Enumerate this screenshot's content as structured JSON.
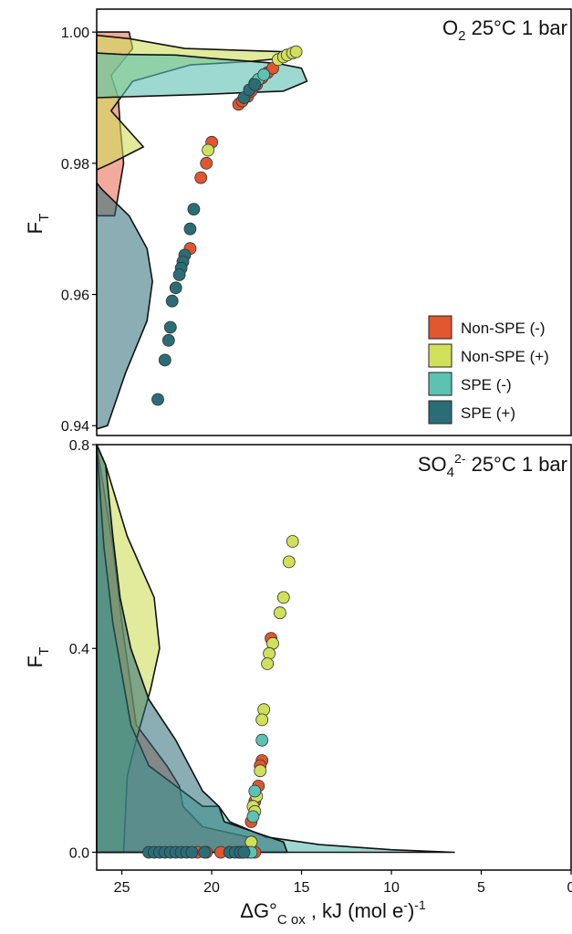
{
  "chart_data": [
    {
      "type": "scatter",
      "panel": "top",
      "title_main": "O",
      "title_sub": "2",
      "title_rest": " 25°C 1 bar",
      "ylabel_main": "F",
      "ylabel_sub": "T",
      "ylim": [
        0.9385,
        1.0035
      ],
      "y_ticks": [
        0.94,
        0.96,
        0.98,
        1.0
      ],
      "y_tick_labels": [
        "0.94",
        "0.96",
        "0.98",
        "1.00"
      ],
      "density_series": [
        {
          "name": "Non-SPE (-)",
          "color": "#e8644a",
          "fill": "rgba(232,100,74,0.55)",
          "x": [
            26.4,
            24.6,
            24.4,
            25.6,
            25.2,
            25.1,
            24.9,
            25.4,
            26.4
          ],
          "y": [
            1.0,
            1.0,
            0.9975,
            0.9934,
            0.99,
            0.986,
            0.98,
            0.972,
            0.972
          ]
        },
        {
          "name": "Non-SPE (+)",
          "color": "#cfdc5a",
          "fill": "rgba(207,220,90,0.6)",
          "x": [
            26.4,
            24.6,
            21.5,
            15.9,
            15.3,
            18.0,
            21.2,
            24.4,
            25.6,
            23.8,
            25.6,
            26.4
          ],
          "y": [
            0.9995,
            0.999,
            0.9975,
            0.997,
            0.9962,
            0.9955,
            0.995,
            0.9925,
            0.988,
            0.9825,
            0.98,
            0.979
          ]
        },
        {
          "name": "SPE (-)",
          "color": "#5cbfb1",
          "fill": "rgba(92,191,177,0.6)",
          "x": [
            26.4,
            25.0,
            22.0,
            20.0,
            16.3,
            15.0,
            14.7,
            16.0,
            20.5,
            24.0,
            26.4
          ],
          "y": [
            0.9968,
            0.9966,
            0.9965,
            0.996,
            0.9952,
            0.9945,
            0.9925,
            0.991,
            0.9905,
            0.9902,
            0.99
          ]
        },
        {
          "name": "SPE (+)",
          "color": "#2a6b74",
          "fill": "rgba(42,107,116,0.55)",
          "x": [
            26.4,
            26.1,
            24.6,
            23.6,
            23.3,
            23.6,
            24.8,
            25.8,
            26.4
          ],
          "y": [
            0.977,
            0.976,
            0.972,
            0.967,
            0.962,
            0.956,
            0.948,
            0.94,
            0.9395
          ]
        }
      ],
      "scatter_series": [
        {
          "name": "Non-SPE (-)",
          "color": "#e0562f",
          "x": [
            18.5,
            18.3,
            18.0,
            17.8,
            17.5,
            17.2,
            16.9,
            16.6,
            20.0,
            20.3,
            20.6,
            21.2
          ],
          "y": [
            0.989,
            0.9895,
            0.9902,
            0.991,
            0.992,
            0.993,
            0.9938,
            0.9945,
            0.9832,
            0.98,
            0.9778,
            0.967
          ]
        },
        {
          "name": "Non-SPE (+)",
          "color": "#d1e05a",
          "x": [
            16.3,
            16.0,
            15.8,
            15.5,
            15.3,
            20.2
          ],
          "y": [
            0.9958,
            0.9962,
            0.9965,
            0.9968,
            0.997,
            0.982
          ]
        },
        {
          "name": "SPE (-)",
          "color": "#5cc3b3",
          "x": [
            17.6,
            17.4,
            17.1
          ],
          "y": [
            0.9922,
            0.9928,
            0.9935
          ]
        },
        {
          "name": "SPE (+)",
          "color": "#2b6d77",
          "x": [
            18.2,
            17.9,
            17.6,
            21.0,
            21.2,
            21.5,
            21.6,
            21.7,
            21.8,
            22.0,
            22.2,
            22.3,
            22.4,
            22.6,
            23.0
          ],
          "y": [
            0.99,
            0.9912,
            0.992,
            0.973,
            0.97,
            0.966,
            0.965,
            0.964,
            0.963,
            0.961,
            0.959,
            0.955,
            0.953,
            0.95,
            0.944
          ]
        }
      ],
      "legend": {
        "placement": "bottom-right",
        "items": [
          {
            "label": "Non-SPE (-)",
            "color": "#e0562f"
          },
          {
            "label": "Non-SPE (+)",
            "color": "#d1e05a"
          },
          {
            "label": "SPE (-)",
            "color": "#5cc3b3"
          },
          {
            "label": "SPE (+)",
            "color": "#2b6d77"
          }
        ]
      }
    },
    {
      "type": "scatter",
      "panel": "bottom",
      "title_main": "SO",
      "title_sub": "4",
      "title_sup": "2-",
      "title_rest": " 25°C 1 bar",
      "ylabel_main": "F",
      "ylabel_sub": "T",
      "ylim": [
        -0.035,
        0.8
      ],
      "y_ticks": [
        0.0,
        0.4,
        0.8
      ],
      "y_tick_labels": [
        "0.0",
        "0.4",
        "0.8"
      ],
      "density_series": [
        {
          "name": "Non-SPE (-)",
          "color": "#e8644a",
          "fill": "rgba(232,100,74,0.55)",
          "x": [
            26.4,
            25.5,
            25.0,
            24.6,
            24.2,
            22.5,
            21.8,
            21.6,
            20.5,
            18.0,
            17.5,
            17.8,
            26.4
          ],
          "y": [
            0.8,
            0.6,
            0.45,
            0.35,
            0.25,
            0.17,
            0.13,
            0.09,
            0.05,
            0.03,
            0.01,
            0.0,
            0.0
          ]
        },
        {
          "name": "Non-SPE (+)",
          "color": "#cfdc5a",
          "fill": "rgba(207,220,90,0.6)",
          "x": [
            26.4,
            25.9,
            24.7,
            23.2,
            22.9,
            23.4,
            24.2,
            24.7,
            24.9,
            26.4
          ],
          "y": [
            0.8,
            0.76,
            0.62,
            0.5,
            0.4,
            0.32,
            0.22,
            0.15,
            0.0,
            0.0
          ]
        },
        {
          "name": "SPE (-)",
          "color": "#5cbfb1",
          "fill": "rgba(92,191,177,0.6)",
          "x": [
            26.4,
            26.0,
            25.5,
            25.0,
            24.5,
            23.5,
            22.0,
            20.5,
            19.6,
            19.0,
            17.0,
            14.0,
            10.0,
            6.5,
            26.4
          ],
          "y": [
            0.8,
            0.6,
            0.45,
            0.35,
            0.25,
            0.17,
            0.13,
            0.09,
            0.09,
            0.06,
            0.03,
            0.015,
            0.005,
            0.0,
            0.0
          ]
        },
        {
          "name": "SPE (+)",
          "color": "#2a6b74",
          "fill": "rgba(42,107,116,0.55)",
          "x": [
            26.4,
            25.9,
            25.5,
            25.1,
            24.5,
            23.5,
            22.0,
            20.5,
            19.6,
            19.3,
            16.0,
            15.8,
            26.4
          ],
          "y": [
            0.8,
            0.76,
            0.62,
            0.5,
            0.4,
            0.3,
            0.22,
            0.12,
            0.09,
            0.06,
            0.02,
            0.0,
            0.0
          ]
        }
      ],
      "scatter_series": [
        {
          "name": "Non-SPE (-)",
          "color": "#e0562f",
          "x": [
            16.7,
            17.2,
            17.3,
            17.4,
            17.6,
            17.8,
            20.8,
            20.3,
            19.5,
            18.5,
            17.8,
            17.6
          ],
          "y": [
            0.42,
            0.18,
            0.17,
            0.13,
            0.1,
            0.06,
            0.0,
            0.0,
            0.0,
            0.0,
            0.0,
            0.0
          ]
        },
        {
          "name": "Non-SPE (+)",
          "color": "#d1e05a",
          "x": [
            15.5,
            15.7,
            16.0,
            16.2,
            16.6,
            16.8,
            16.9,
            17.1,
            17.2,
            17.3,
            17.5,
            17.7,
            17.6,
            17.8,
            18.0,
            18.3,
            19.0
          ],
          "y": [
            0.61,
            0.57,
            0.5,
            0.47,
            0.41,
            0.39,
            0.37,
            0.28,
            0.26,
            0.16,
            0.11,
            0.09,
            0.08,
            0.02,
            0.0,
            0.0,
            0.0
          ]
        },
        {
          "name": "SPE (-)",
          "color": "#5cc3b3",
          "x": [
            17.2,
            17.6,
            17.7,
            17.8
          ],
          "y": [
            0.22,
            0.12,
            0.07,
            0.0
          ]
        },
        {
          "name": "SPE (+)",
          "color": "#2b6d77",
          "x": [
            23.5,
            23.2,
            22.9,
            22.6,
            22.3,
            22.0,
            21.7,
            21.4,
            21.1,
            20.4,
            19.0,
            18.7,
            18.4,
            18.2
          ],
          "y": [
            0.0,
            0.0,
            0.0,
            0.0,
            0.0,
            0.0,
            0.0,
            0.0,
            0.0,
            0.0,
            0.0,
            0.0,
            0.0,
            0.0
          ]
        }
      ]
    }
  ],
  "x_axis": {
    "label_main": "ΔG°",
    "label_sub": "C ox",
    "label_rest": " , kJ (mol e",
    "label_sup1": "-",
    "label_close": ")",
    "label_sup2": "-1",
    "xlim": [
      26.4,
      0.0
    ],
    "ticks": [
      25,
      20,
      15,
      10,
      5,
      0
    ],
    "tick_labels": [
      "25",
      "20",
      "15",
      "10",
      "5",
      "0"
    ]
  }
}
